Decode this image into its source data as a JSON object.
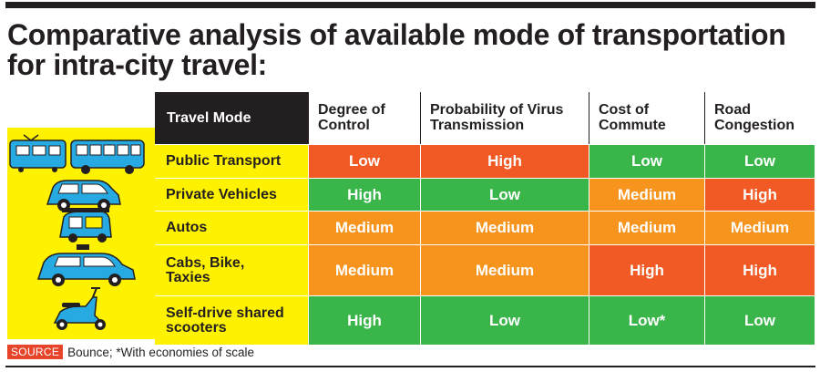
{
  "title": {
    "line1": "Comparative analysis of available mode of transportation",
    "line2": "for intra-city travel:"
  },
  "colors": {
    "high_risk": "#f15a24",
    "good": "#39b54a",
    "medium": "#f7941d",
    "yellow": "#fff200",
    "dark": "#231f20"
  },
  "table": {
    "headers": {
      "mode": "Travel Mode",
      "control_1": "Degree of",
      "control_2": "Control",
      "virus_1": "Probability of Virus",
      "virus_2": "Transmission",
      "cost_1": "Cost of",
      "cost_2": "Commute",
      "congestion_1": "Road",
      "congestion_2": "Congestion"
    },
    "rows": [
      {
        "mode_1": "Public Transport",
        "mode_2": "",
        "control": "Low",
        "virus": "High",
        "cost": "Low",
        "congestion": "Low"
      },
      {
        "mode_1": "Private Vehicles",
        "mode_2": "",
        "control": "High",
        "virus": "Low",
        "cost": "Medium",
        "congestion": "High"
      },
      {
        "mode_1": "Autos",
        "mode_2": "",
        "control": "Medium",
        "virus": "Medium",
        "cost": "Medium",
        "congestion": "Medium"
      },
      {
        "mode_1": "Cabs, Bike,",
        "mode_2": "Taxies",
        "control": "Medium",
        "virus": "Medium",
        "cost": "High",
        "congestion": "High"
      },
      {
        "mode_1": "Self-drive shared",
        "mode_2": "scooters",
        "control": "High",
        "virus": "Low",
        "cost": "Low*",
        "congestion": "Low"
      }
    ]
  },
  "icons": [
    "train-icon",
    "bus-icon",
    "car-icon",
    "auto-rickshaw-icon",
    "taxi-icon",
    "scooter-icon"
  ],
  "footer": {
    "source_label": "SOURCE",
    "source_text": "Bounce;  *With economies of scale"
  }
}
